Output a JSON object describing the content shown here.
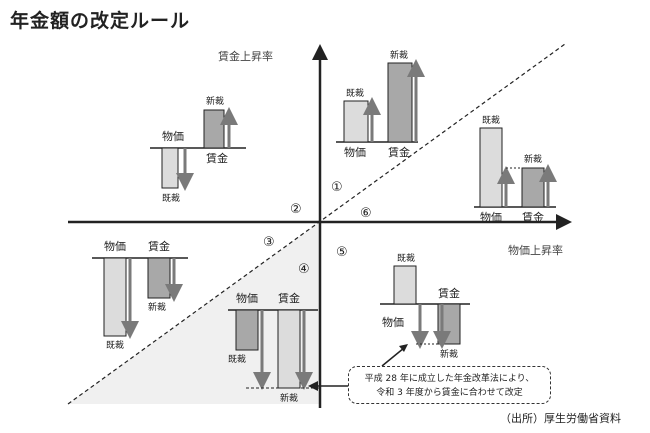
{
  "title": "年金額の改定ルール",
  "axes": {
    "y_label": "賃金上昇率",
    "x_label": "物価上昇率"
  },
  "labels": {
    "price": "物価",
    "wage": "賃金",
    "new_award": "新裁",
    "existing_award": "既裁"
  },
  "zones": [
    "①",
    "②",
    "③",
    "④",
    "⑤",
    "⑥"
  ],
  "note": {
    "line1": "平成 28 年に成立した年金改革法により、",
    "line2": "令和 3 年度から賃金に合わせて改定"
  },
  "source": "（出所）厚生労働省資料",
  "colors": {
    "light_bar": "#dcdcdc",
    "dark_bar": "#a8a8a8",
    "arrow": "#7a7a7a",
    "shade": "#f0f0f0"
  }
}
